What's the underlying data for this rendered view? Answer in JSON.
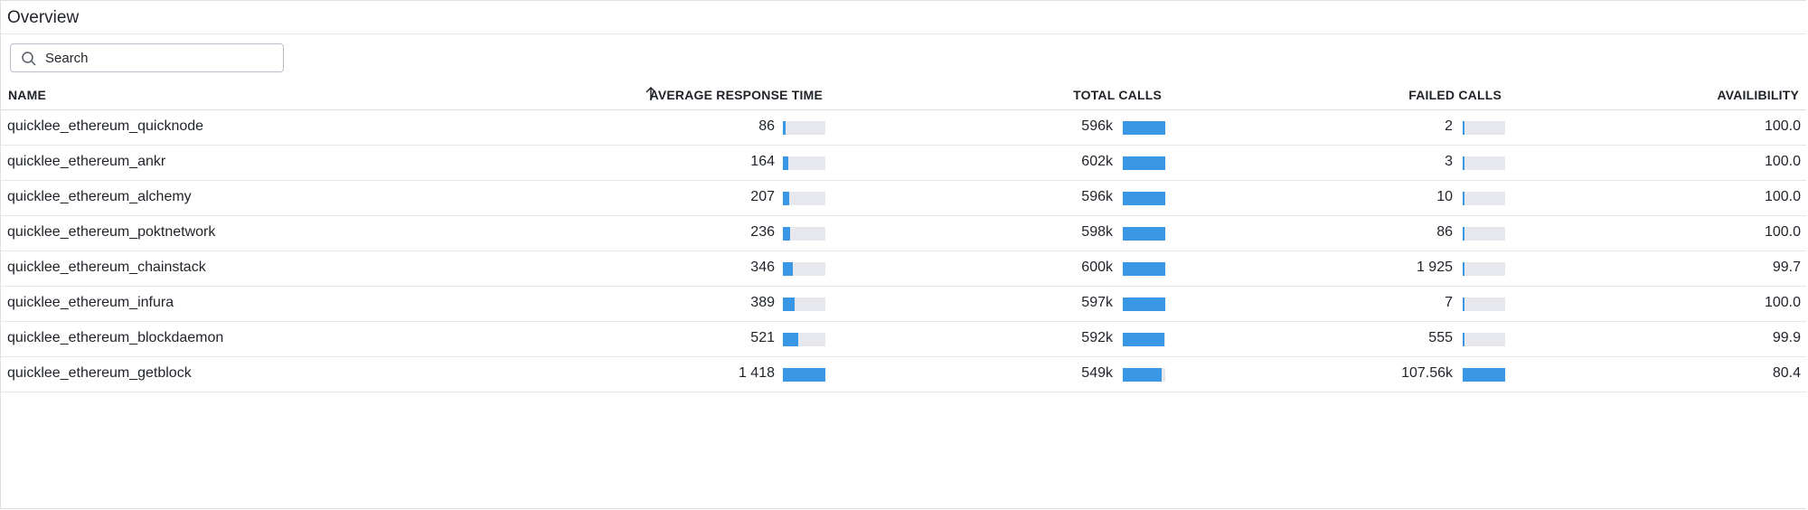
{
  "panel": {
    "title": "Overview"
  },
  "search": {
    "placeholder": "Search"
  },
  "columns": {
    "name": "NAME",
    "avg_response": "AVERAGE RESPONSE TIME",
    "total_calls": "TOTAL CALLS",
    "failed_calls": "FAILED CALLS",
    "availability": "AVAILIBILITY"
  },
  "sort": {
    "column": "avg_response",
    "direction": "ascending",
    "icon": "arrow-up-icon"
  },
  "colors": {
    "bar_fill": "#3a97e6",
    "bar_track": "#e6e8ee"
  },
  "rows": [
    {
      "name": "quicklee_ethereum_quicknode",
      "avg_response": "86",
      "avg_response_frac": 0.06,
      "total_calls": "596k",
      "total_calls_frac": 0.99,
      "failed_calls": "2",
      "failed_calls_frac": 0.0,
      "availability": "100.0"
    },
    {
      "name": "quicklee_ethereum_ankr",
      "avg_response": "164",
      "avg_response_frac": 0.12,
      "total_calls": "602k",
      "total_calls_frac": 1.0,
      "failed_calls": "3",
      "failed_calls_frac": 0.0,
      "availability": "100.0"
    },
    {
      "name": "quicklee_ethereum_alchemy",
      "avg_response": "207",
      "avg_response_frac": 0.15,
      "total_calls": "596k",
      "total_calls_frac": 0.99,
      "failed_calls": "10",
      "failed_calls_frac": 0.0,
      "availability": "100.0"
    },
    {
      "name": "quicklee_ethereum_poktnetwork",
      "avg_response": "236",
      "avg_response_frac": 0.17,
      "total_calls": "598k",
      "total_calls_frac": 0.99,
      "failed_calls": "86",
      "failed_calls_frac": 0.0,
      "availability": "100.0"
    },
    {
      "name": "quicklee_ethereum_chainstack",
      "avg_response": "346",
      "avg_response_frac": 0.24,
      "total_calls": "600k",
      "total_calls_frac": 1.0,
      "failed_calls": "1 925",
      "failed_calls_frac": 0.02,
      "availability": "99.7"
    },
    {
      "name": "quicklee_ethereum_infura",
      "avg_response": "389",
      "avg_response_frac": 0.27,
      "total_calls": "597k",
      "total_calls_frac": 0.99,
      "failed_calls": "7",
      "failed_calls_frac": 0.0,
      "availability": "100.0"
    },
    {
      "name": "quicklee_ethereum_blockdaemon",
      "avg_response": "521",
      "avg_response_frac": 0.37,
      "total_calls": "592k",
      "total_calls_frac": 0.98,
      "failed_calls": "555",
      "failed_calls_frac": 0.0,
      "availability": "99.9"
    },
    {
      "name": "quicklee_ethereum_getblock",
      "avg_response": "1 418",
      "avg_response_frac": 1.0,
      "total_calls": "549k",
      "total_calls_frac": 0.91,
      "failed_calls": "107.56k",
      "failed_calls_frac": 1.0,
      "availability": "80.4"
    }
  ]
}
